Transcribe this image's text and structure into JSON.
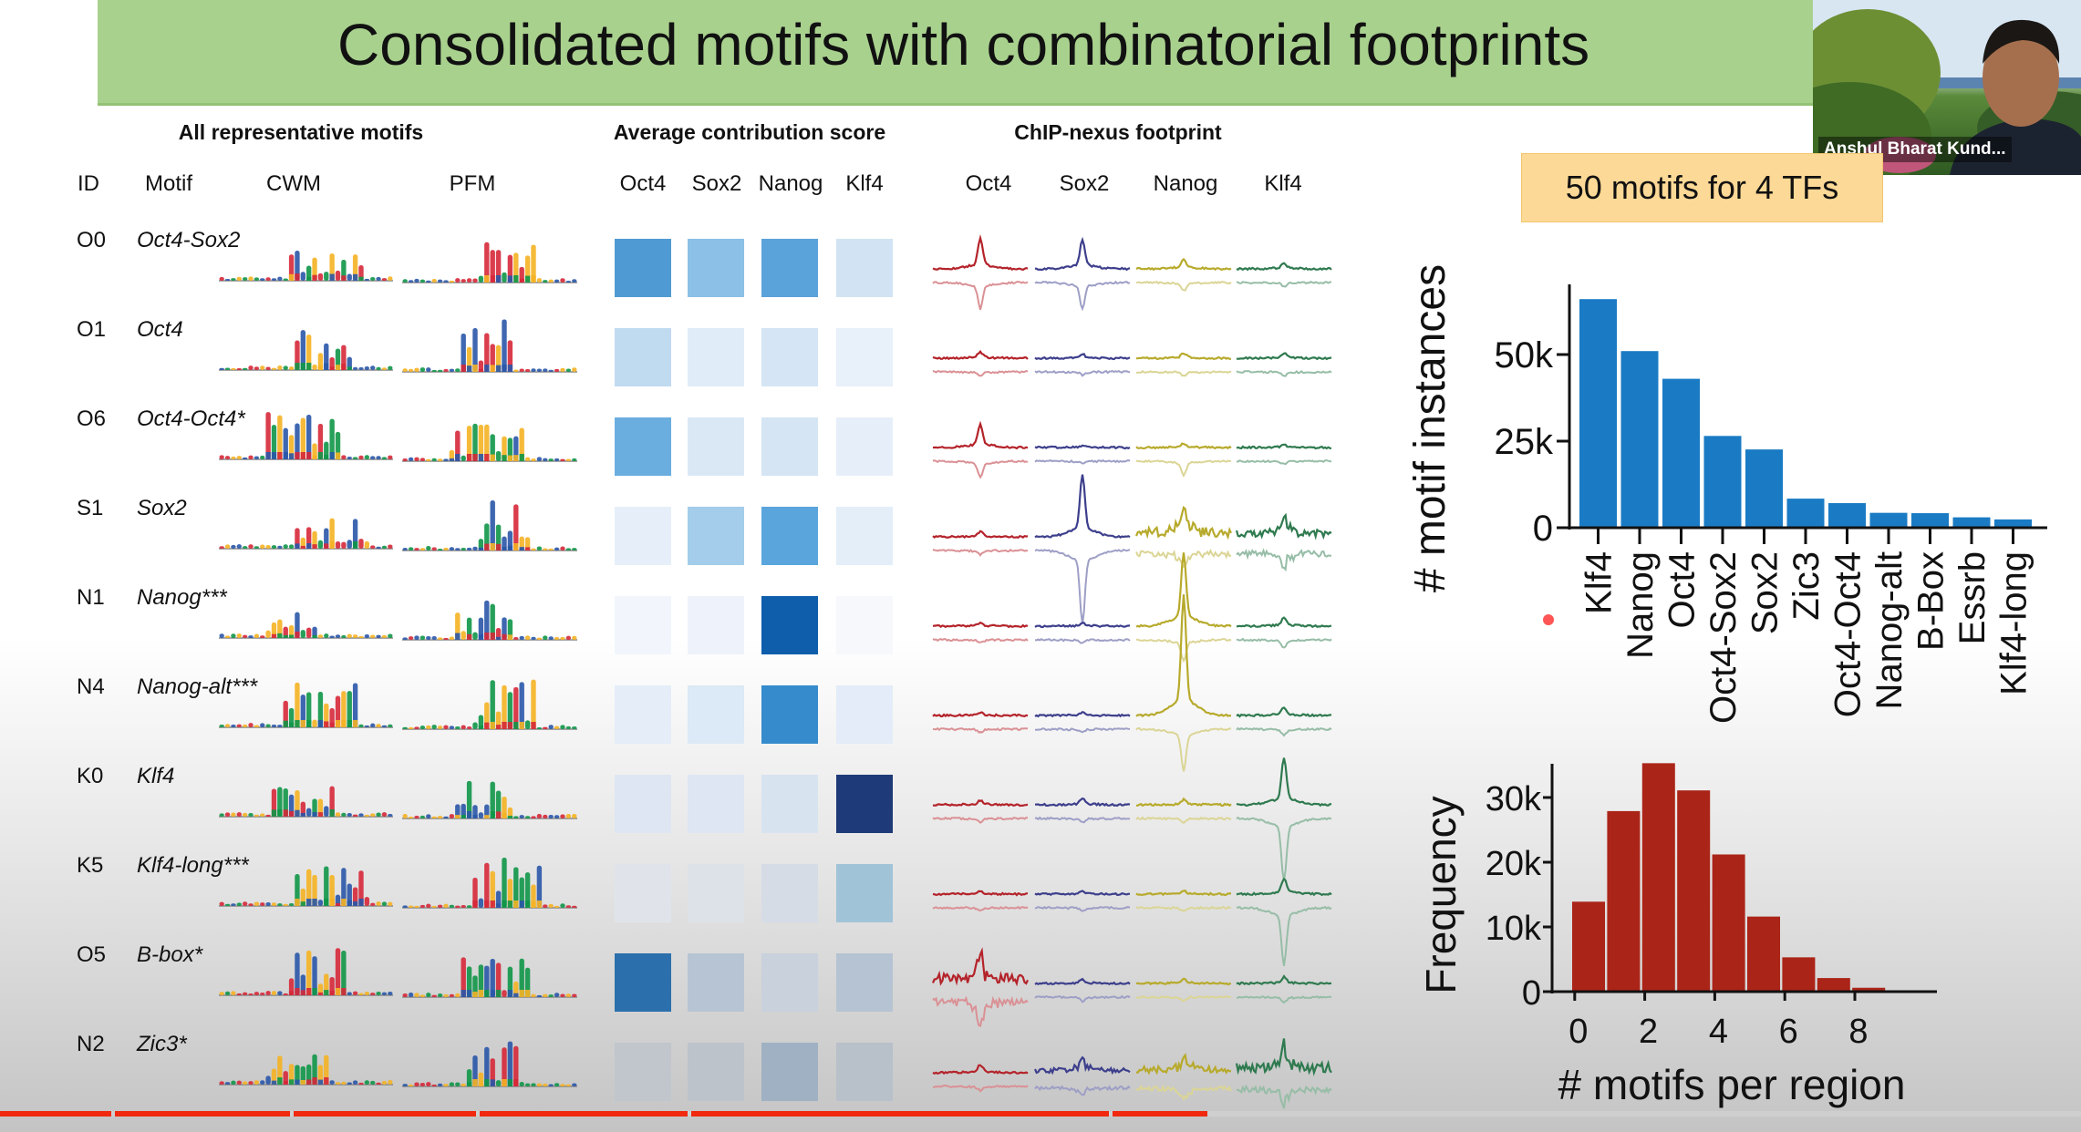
{
  "slide": {
    "title": "Consolidated motifs with combinatorial footprints",
    "callout": "50 motifs for 4 TFs",
    "sections": {
      "motifs": "All representative motifs",
      "contribution": "Average contribution score",
      "footprint": "ChIP-nexus footprint"
    },
    "columns": {
      "id": "ID",
      "motif": "Motif",
      "cwm": "CWM",
      "pfm": "PFM",
      "contribution": [
        "Oct4",
        "Sox2",
        "Nanog",
        "Klf4"
      ],
      "footprint": [
        "Oct4",
        "Sox2",
        "Nanog",
        "Klf4"
      ]
    },
    "footprint_colors": [
      "#b4232a",
      "#3d3f8c",
      "#b7aa2c",
      "#2f7a4f"
    ],
    "base_colors": {
      "A": "#109648",
      "C": "#2a56a8",
      "G": "#f5b324",
      "T": "#d62839"
    },
    "rows": [
      {
        "id": "O0",
        "motif": "Oct4-Sox2",
        "contribution_colors": [
          "#4f9ad3",
          "#8cc0e6",
          "#5aa2da",
          "#d2e4f3"
        ]
      },
      {
        "id": "O1",
        "motif": "Oct4",
        "contribution_colors": [
          "#c0daf0",
          "#e0ecf8",
          "#d5e5f5",
          "#e8f0fa"
        ]
      },
      {
        "id": "O6",
        "motif": "Oct4-Oct4*",
        "contribution_colors": [
          "#6aaedf",
          "#dae8f6",
          "#d5e5f4",
          "#e6eff9"
        ]
      },
      {
        "id": "S1",
        "motif": "Sox2",
        "contribution_colors": [
          "#e6eff9",
          "#a3cdea",
          "#5aa6dc",
          "#e3eef9"
        ]
      },
      {
        "id": "N1",
        "motif": "Nanog***",
        "contribution_colors": [
          "#f2f6fc",
          "#eef3fb",
          "#0f5eac",
          "#f6f8fc"
        ]
      },
      {
        "id": "N4",
        "motif": "Nanog-alt***",
        "contribution_colors": [
          "#e4edf8",
          "#dce9f6",
          "#358bcc",
          "#e3ecf8"
        ]
      },
      {
        "id": "K0",
        "motif": "Klf4",
        "contribution_colors": [
          "#dde6f2",
          "#dde6f2",
          "#d8e3f0",
          "#1e3a78"
        ]
      },
      {
        "id": "K5",
        "motif": "Klf4-long***",
        "contribution_colors": [
          "#e0e4ea",
          "#dde2e8",
          "#d5dce6",
          "#a0c3d8"
        ]
      },
      {
        "id": "O5",
        "motif": "B-box*",
        "contribution_colors": [
          "#2b70ac",
          "#b7c4d4",
          "#c9d1dc",
          "#b6c3d3"
        ]
      },
      {
        "id": "N2",
        "motif": "Zic3*",
        "contribution_colors": [
          "#c0c6cc",
          "#bcc3cb",
          "#9fb1c2",
          "#b8c0c9"
        ]
      }
    ]
  },
  "webcam": {
    "name": "Anshul Bharat Kund..."
  },
  "video": {
    "progress_percent": 58
  },
  "chart_data": [
    {
      "type": "bar",
      "ylabel": "# motif instances",
      "xlabel": "",
      "categories": [
        "Klf4",
        "Nanog",
        "Oct4",
        "Oct4-Sox2",
        "Sox2",
        "Zic3",
        "Oct4-Oct4",
        "Nanog-alt",
        "B-Box",
        "Essrb",
        "Klf4-long"
      ],
      "values": [
        66000,
        51000,
        43000,
        26500,
        22600,
        8400,
        7100,
        4300,
        4200,
        3000,
        2400
      ],
      "yticks": [
        0,
        25000,
        50000
      ],
      "ytick_labels": [
        "0",
        "25k",
        "50k"
      ],
      "ylim": [
        0,
        70000
      ],
      "color": "#1a7bc4",
      "grid": false
    },
    {
      "type": "bar",
      "ylabel": "Frequency",
      "xlabel": "# motifs per region",
      "x": [
        0,
        1,
        2,
        3,
        4,
        5,
        6,
        7,
        8,
        9
      ],
      "values": [
        13900,
        27900,
        35300,
        31100,
        21200,
        11600,
        5300,
        2100,
        600,
        200
      ],
      "xticks": [
        0,
        2,
        4,
        6,
        8
      ],
      "xtick_labels": [
        "0",
        "2",
        "4",
        "6",
        "8"
      ],
      "yticks": [
        0,
        10000,
        20000,
        30000
      ],
      "ytick_labels": [
        "0",
        "10k",
        "20k",
        "30k"
      ],
      "ylim": [
        0,
        36000
      ],
      "color": "#ab2418",
      "grid": false
    }
  ]
}
